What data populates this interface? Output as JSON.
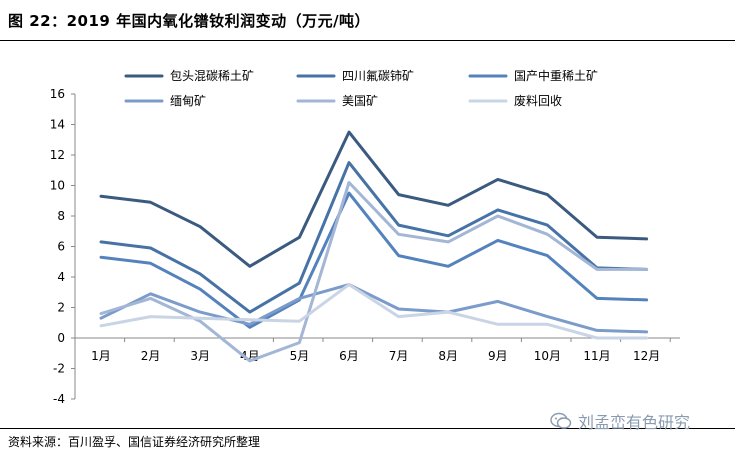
{
  "header": {
    "title": "图 22：2019 年国内氧化镨钕利润变动（万元/吨）"
  },
  "footer": {
    "source": "资料来源：百川盈孚、国信证券经济研究所整理",
    "watermark": "刘孟峦有色研究"
  },
  "chart_data": {
    "type": "line",
    "title": "",
    "xlabel": "",
    "ylabel": "",
    "categories": [
      "1月",
      "2月",
      "3月",
      "4月",
      "5月",
      "6月",
      "7月",
      "8月",
      "9月",
      "10月",
      "11月",
      "12月"
    ],
    "ylim": [
      -4,
      16
    ],
    "yticks": [
      -4,
      -2,
      0,
      2,
      4,
      6,
      8,
      10,
      12,
      14,
      16
    ],
    "grid": false,
    "legend_position": "top",
    "series": [
      {
        "name": "包头混碳稀土矿",
        "color": "#3b5a80",
        "values": [
          9.3,
          8.9,
          7.3,
          4.7,
          6.6,
          13.5,
          9.4,
          8.7,
          10.4,
          9.4,
          6.6,
          6.5
        ]
      },
      {
        "name": "四川氟碳铈矿",
        "color": "#4672a6",
        "values": [
          6.3,
          5.9,
          4.2,
          1.7,
          3.6,
          11.5,
          7.4,
          6.7,
          8.4,
          7.4,
          4.6,
          4.5
        ]
      },
      {
        "name": "国产中重稀土矿",
        "color": "#5482bd",
        "values": [
          5.3,
          4.9,
          3.2,
          0.7,
          2.5,
          9.5,
          5.4,
          4.7,
          6.4,
          5.4,
          2.6,
          2.5
        ]
      },
      {
        "name": "缅甸矿",
        "color": "#7b9cca",
        "values": [
          1.3,
          2.9,
          1.7,
          0.9,
          2.6,
          3.5,
          1.9,
          1.7,
          2.4,
          1.4,
          0.5,
          0.4
        ]
      },
      {
        "name": "美国矿",
        "color": "#a3b6d6",
        "values": [
          1.6,
          2.6,
          1.1,
          -1.5,
          -0.3,
          10.2,
          6.8,
          6.3,
          8.0,
          6.8,
          4.5,
          4.5
        ]
      },
      {
        "name": "废料回收",
        "color": "#c9d4e5",
        "values": [
          0.8,
          1.4,
          1.3,
          1.2,
          1.1,
          3.5,
          1.4,
          1.7,
          0.9,
          0.9,
          0.0,
          0.0
        ]
      }
    ]
  }
}
